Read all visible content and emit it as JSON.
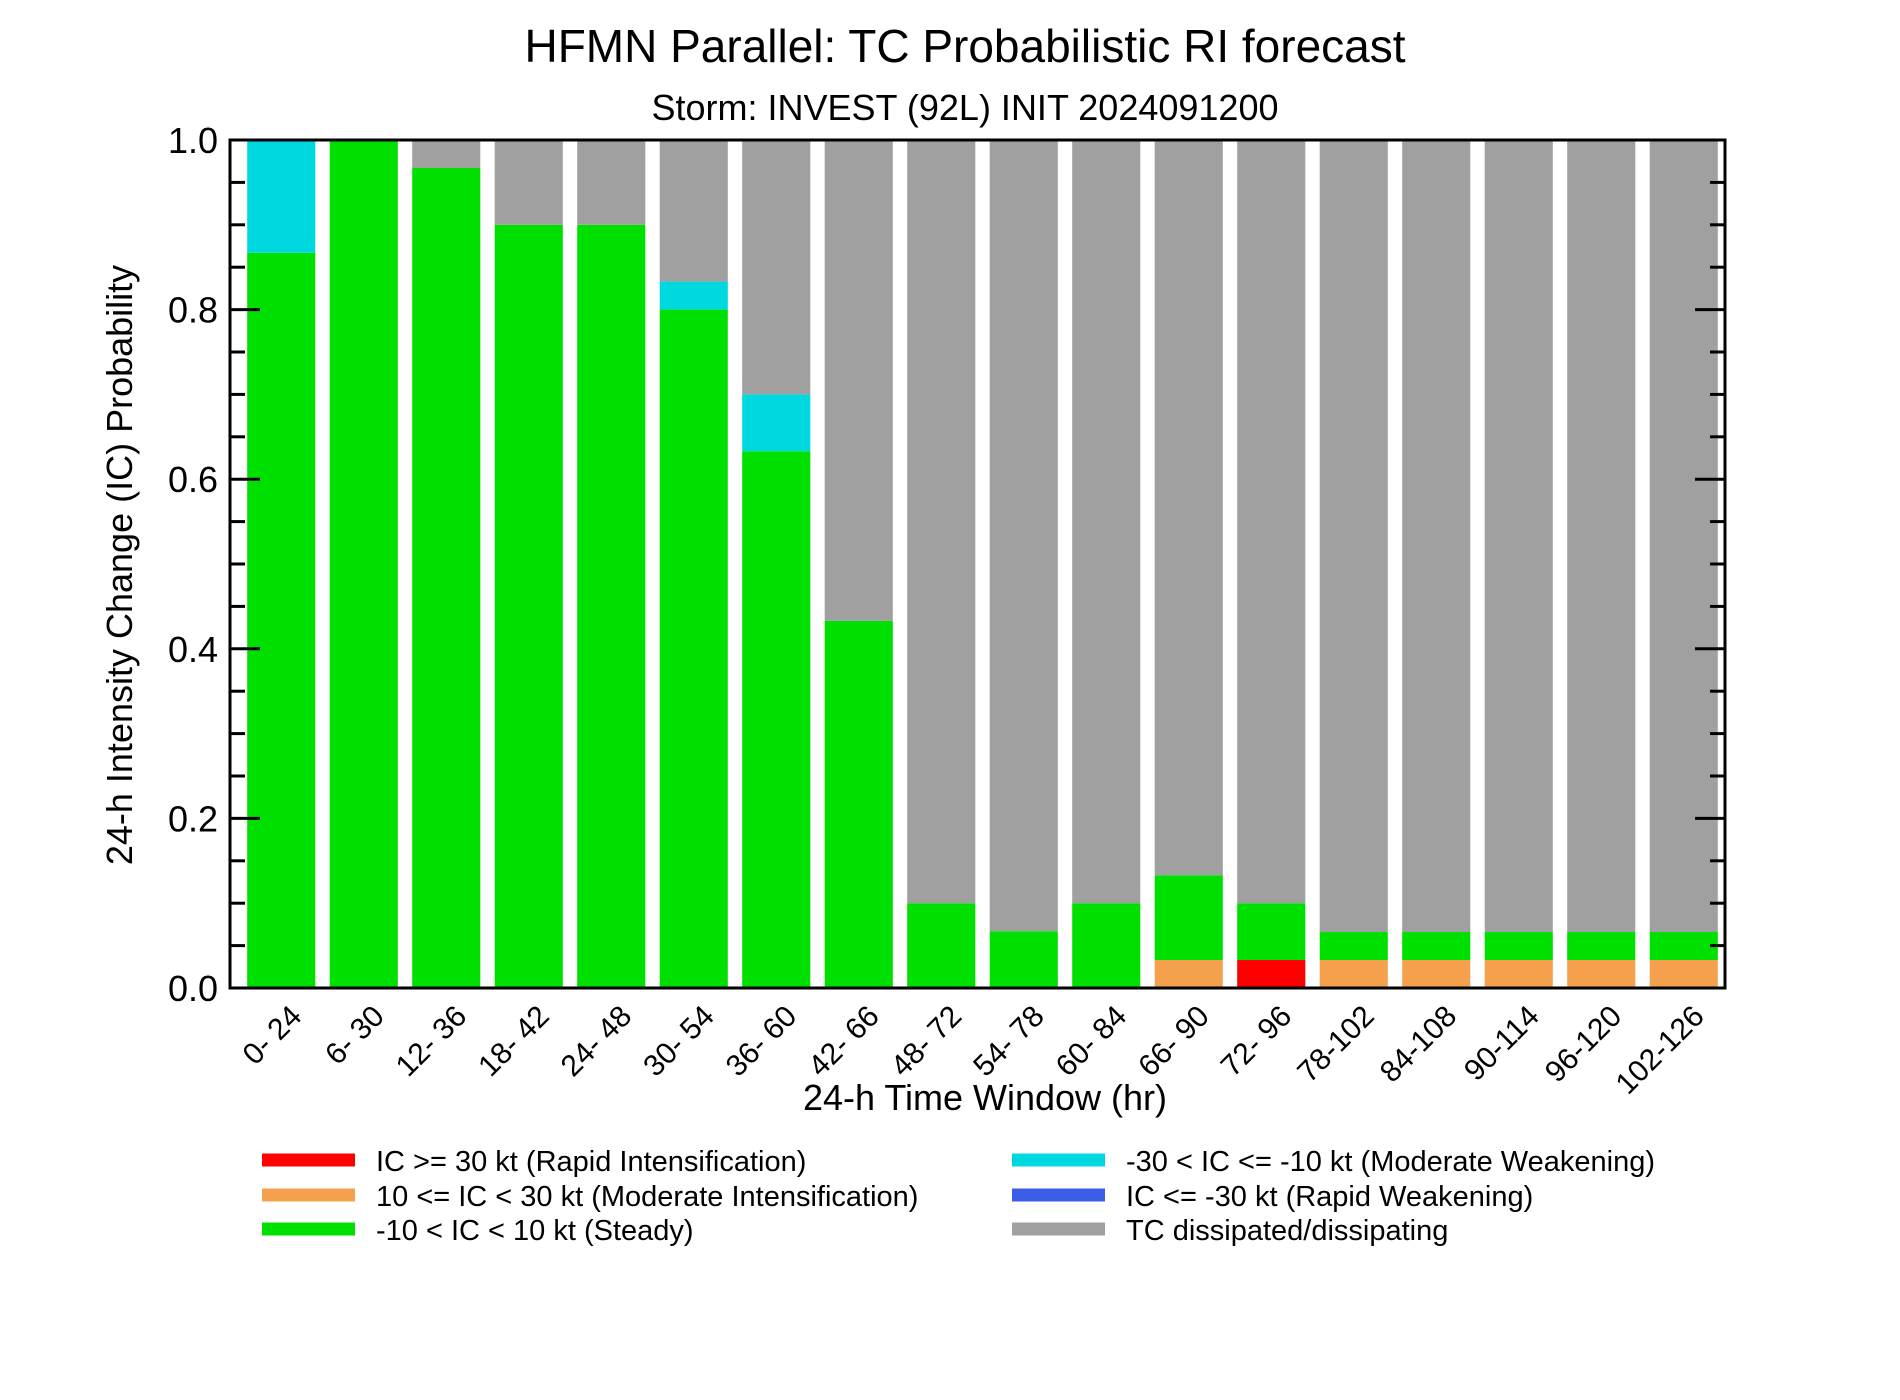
{
  "chart_data": {
    "type": "bar",
    "stacked": true,
    "title": "HFMN Parallel: TC Probabilistic RI forecast",
    "subtitle": "Storm: INVEST (92L) INIT 2024091200",
    "xlabel": "24-h Time Window (hr)",
    "ylabel": "24-h Intensity Change (IC) Probability",
    "ylim": [
      0,
      1
    ],
    "yticks": [
      "0.0",
      "0.2",
      "0.4",
      "0.6",
      "0.8",
      "1.0"
    ],
    "grid": false,
    "legend_position": "bottom",
    "categories": [
      "0- 24",
      "6- 30",
      "12- 36",
      "18- 42",
      "24- 48",
      "30- 54",
      "36- 60",
      "42- 66",
      "48- 72",
      "54- 78",
      "60- 84",
      "66- 90",
      "72- 96",
      "78-102",
      "84-108",
      "90-114",
      "96-120",
      "102-126"
    ],
    "series": [
      {
        "name": "IC >= 30 kt (Rapid Intensification)",
        "color": "#ff0000",
        "values": [
          0,
          0,
          0,
          0,
          0,
          0,
          0,
          0,
          0,
          0,
          0,
          0,
          0.033,
          0,
          0,
          0,
          0,
          0
        ]
      },
      {
        "name": "10 <= IC < 30 kt (Moderate Intensification)",
        "color": "#f5a04d",
        "values": [
          0,
          0,
          0,
          0,
          0,
          0,
          0,
          0,
          0,
          0,
          0,
          0.033,
          0,
          0.033,
          0.033,
          0.033,
          0.033,
          0.033
        ]
      },
      {
        "name": "-10 < IC < 10 kt (Steady)",
        "color": "#00e000",
        "values": [
          0.867,
          1.0,
          0.967,
          0.9,
          0.9,
          0.8,
          0.633,
          0.433,
          0.1,
          0.067,
          0.1,
          0.1,
          0.067,
          0.033,
          0.033,
          0.033,
          0.033,
          0.033
        ]
      },
      {
        "name": "-30 < IC <= -10 kt (Moderate Weakening)",
        "color": "#00d8e0",
        "values": [
          0.133,
          0,
          0,
          0,
          0,
          0.033,
          0.067,
          0,
          0,
          0,
          0,
          0,
          0,
          0,
          0,
          0,
          0,
          0
        ]
      },
      {
        "name": "IC <= -30 kt (Rapid Weakening)",
        "color": "#3b5ee8",
        "values": [
          0,
          0,
          0,
          0,
          0,
          0,
          0,
          0,
          0,
          0,
          0,
          0,
          0,
          0,
          0,
          0,
          0,
          0
        ]
      },
      {
        "name": "TC dissipated/dissipating",
        "color": "#a0a0a0",
        "values": [
          0,
          0,
          0.033,
          0.1,
          0.1,
          0.167,
          0.3,
          0.567,
          0.9,
          0.933,
          0.9,
          0.867,
          0.9,
          0.933,
          0.933,
          0.933,
          0.933,
          0.933
        ]
      }
    ],
    "legend_order": [
      0,
      1,
      2,
      3,
      4,
      5
    ]
  }
}
